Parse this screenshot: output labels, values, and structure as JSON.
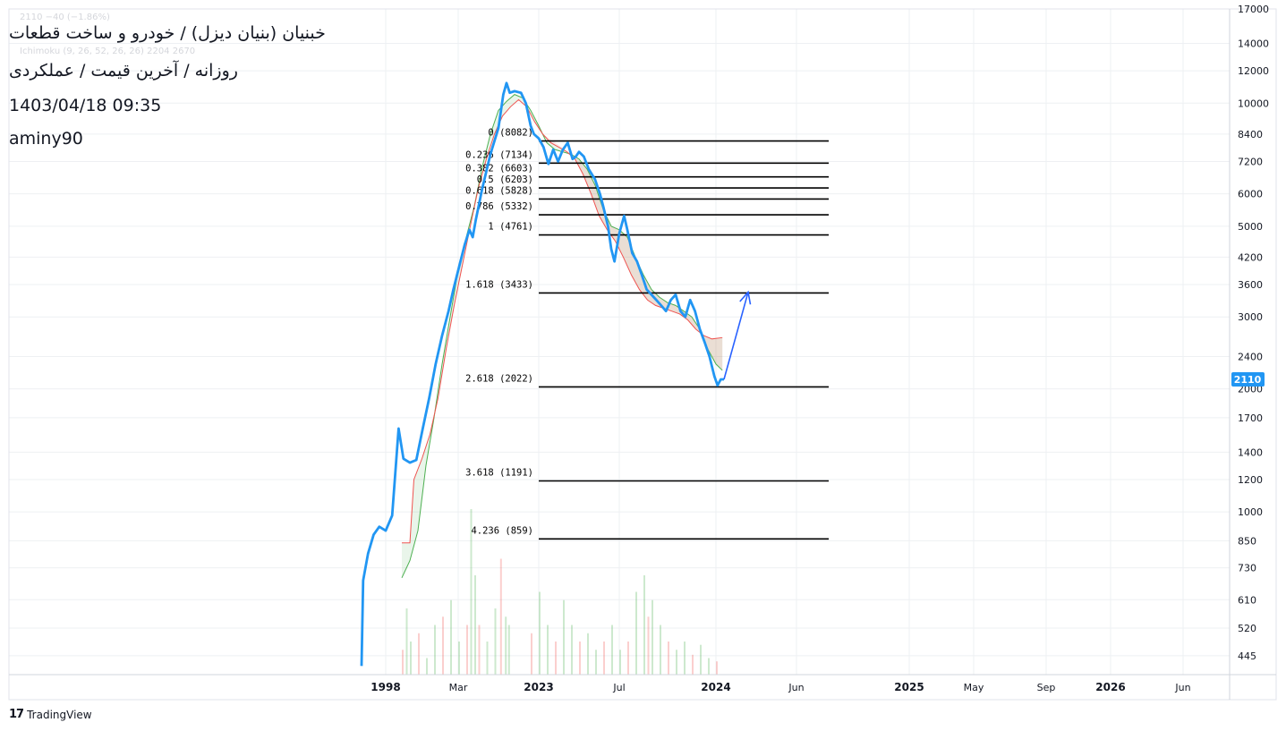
{
  "header": {
    "symbol_title": "خبنیان (بنیان دیزل) / خودرو و ساخت قطعات",
    "subtitle": "روزانه / آخرین قیمت / عملکردی",
    "datetime": "1403/04/18 09:35",
    "author": "aminy90",
    "faint_price_line": "2110 −40 (−1.86%)",
    "faint_indicator_line": "Ichimoku (9, 26, 52, 26, 26) 2204 2670"
  },
  "brand": {
    "logo_mark": "17",
    "logo_text": "TradingView"
  },
  "colors": {
    "price": "#2196f3",
    "cloud_green": "#4caf50",
    "cloud_red": "#ef5350",
    "fib": "#000000",
    "grid": "#eef0f3",
    "axis_text": "#131722",
    "last_price_bg": "#2196f3"
  },
  "chart_data": {
    "type": "line",
    "scale": "log",
    "ylim": [
      400,
      17000
    ],
    "y_ticks": [
      17000,
      14000,
      12000,
      10000,
      8400,
      7200,
      6000,
      5000,
      4200,
      3600,
      3000,
      2400,
      2000,
      1700,
      1400,
      1200,
      1000,
      850,
      730,
      610,
      520,
      445
    ],
    "x_ticks": [
      {
        "label": "1998",
        "pos": 0.3,
        "bold": true
      },
      {
        "label": "Mar",
        "pos": 1.2,
        "bold": false
      },
      {
        "label": "2023",
        "pos": 2.2,
        "bold": true
      },
      {
        "label": "Jul",
        "pos": 3.2,
        "bold": false
      },
      {
        "label": "2024",
        "pos": 4.4,
        "bold": true
      },
      {
        "label": "Jun",
        "pos": 5.4,
        "bold": false
      },
      {
        "label": "2025",
        "pos": 6.8,
        "bold": true
      },
      {
        "label": "May",
        "pos": 7.6,
        "bold": false
      },
      {
        "label": "Sep",
        "pos": 8.5,
        "bold": false
      },
      {
        "label": "2026",
        "pos": 9.3,
        "bold": true
      },
      {
        "label": "Jun",
        "pos": 10.2,
        "bold": false
      }
    ],
    "last_price": 2110,
    "series": [
      {
        "name": "",
        "values": [
          [
            0.0,
            420
          ],
          [
            0.02,
            680
          ],
          [
            0.08,
            790
          ],
          [
            0.15,
            880
          ],
          [
            0.22,
            920
          ],
          [
            0.3,
            900
          ],
          [
            0.38,
            980
          ],
          [
            0.46,
            1600
          ],
          [
            0.52,
            1350
          ],
          [
            0.6,
            1320
          ],
          [
            0.68,
            1340
          ],
          [
            0.76,
            1600
          ],
          [
            0.84,
            1900
          ],
          [
            0.92,
            2300
          ],
          [
            1.0,
            2700
          ],
          [
            1.08,
            3100
          ],
          [
            1.14,
            3500
          ],
          [
            1.2,
            3900
          ],
          [
            1.28,
            4500
          ],
          [
            1.34,
            4900
          ],
          [
            1.38,
            4700
          ],
          [
            1.42,
            5200
          ],
          [
            1.5,
            6200
          ],
          [
            1.6,
            7500
          ],
          [
            1.7,
            8700
          ],
          [
            1.76,
            10500
          ],
          [
            1.8,
            11200
          ],
          [
            1.84,
            10600
          ],
          [
            1.9,
            10700
          ],
          [
            1.98,
            10600
          ],
          [
            2.04,
            10000
          ],
          [
            2.1,
            8800
          ],
          [
            2.14,
            8400
          ],
          [
            2.2,
            8200
          ],
          [
            2.26,
            7800
          ],
          [
            2.32,
            7100
          ],
          [
            2.38,
            7700
          ],
          [
            2.44,
            7200
          ],
          [
            2.5,
            7700
          ],
          [
            2.56,
            8000
          ],
          [
            2.62,
            7300
          ],
          [
            2.66,
            7400
          ],
          [
            2.7,
            7600
          ],
          [
            2.76,
            7400
          ],
          [
            2.82,
            6900
          ],
          [
            2.9,
            6500
          ],
          [
            2.96,
            6000
          ],
          [
            3.0,
            5600
          ],
          [
            3.06,
            5000
          ],
          [
            3.1,
            4400
          ],
          [
            3.14,
            4100
          ],
          [
            3.2,
            4800
          ],
          [
            3.26,
            5300
          ],
          [
            3.3,
            4900
          ],
          [
            3.36,
            4300
          ],
          [
            3.42,
            4100
          ],
          [
            3.48,
            3800
          ],
          [
            3.54,
            3500
          ],
          [
            3.6,
            3400
          ],
          [
            3.66,
            3300
          ],
          [
            3.72,
            3200
          ],
          [
            3.78,
            3100
          ],
          [
            3.84,
            3300
          ],
          [
            3.9,
            3400
          ],
          [
            3.96,
            3100
          ],
          [
            4.02,
            3000
          ],
          [
            4.08,
            3300
          ],
          [
            4.14,
            3100
          ],
          [
            4.2,
            2800
          ],
          [
            4.26,
            2600
          ],
          [
            4.32,
            2400
          ],
          [
            4.38,
            2150
          ],
          [
            4.42,
            2040
          ],
          [
            4.46,
            2110
          ],
          [
            4.5,
            2110
          ]
        ]
      }
    ],
    "ichimoku_cloud": {
      "span_a": [
        [
          0.5,
          690
        ],
        [
          0.6,
          760
        ],
        [
          0.7,
          900
        ],
        [
          0.8,
          1300
        ],
        [
          0.9,
          1700
        ],
        [
          1.0,
          2300
        ],
        [
          1.1,
          3000
        ],
        [
          1.2,
          3900
        ],
        [
          1.3,
          4700
        ],
        [
          1.4,
          5600
        ],
        [
          1.5,
          7000
        ],
        [
          1.6,
          8400
        ],
        [
          1.7,
          9600
        ],
        [
          1.8,
          10100
        ],
        [
          1.9,
          10500
        ],
        [
          2.0,
          10300
        ],
        [
          2.1,
          9600
        ],
        [
          2.2,
          8800
        ],
        [
          2.3,
          8000
        ],
        [
          2.4,
          7700
        ],
        [
          2.5,
          7600
        ],
        [
          2.6,
          7500
        ],
        [
          2.7,
          7300
        ],
        [
          2.8,
          6900
        ],
        [
          2.9,
          6300
        ],
        [
          3.0,
          5500
        ],
        [
          3.1,
          5000
        ],
        [
          3.2,
          4900
        ],
        [
          3.3,
          4700
        ],
        [
          3.4,
          4200
        ],
        [
          3.5,
          3800
        ],
        [
          3.6,
          3500
        ],
        [
          3.7,
          3350
        ],
        [
          3.8,
          3250
        ],
        [
          3.9,
          3200
        ],
        [
          4.0,
          3100
        ],
        [
          4.1,
          3000
        ],
        [
          4.2,
          2800
        ],
        [
          4.3,
          2500
        ],
        [
          4.4,
          2300
        ],
        [
          4.48,
          2220
        ]
      ],
      "span_b": [
        [
          0.5,
          840
        ],
        [
          0.6,
          840
        ],
        [
          0.65,
          1200
        ],
        [
          0.75,
          1350
        ],
        [
          0.85,
          1550
        ],
        [
          0.95,
          1900
        ],
        [
          1.05,
          2500
        ],
        [
          1.15,
          3200
        ],
        [
          1.25,
          4000
        ],
        [
          1.35,
          5000
        ],
        [
          1.45,
          6200
        ],
        [
          1.55,
          7300
        ],
        [
          1.65,
          8400
        ],
        [
          1.75,
          9300
        ],
        [
          1.85,
          9800
        ],
        [
          1.95,
          10200
        ],
        [
          2.05,
          9800
        ],
        [
          2.15,
          9000
        ],
        [
          2.25,
          8400
        ],
        [
          2.35,
          8000
        ],
        [
          2.45,
          7800
        ],
        [
          2.55,
          7600
        ],
        [
          2.65,
          7300
        ],
        [
          2.75,
          6700
        ],
        [
          2.85,
          6000
        ],
        [
          2.95,
          5300
        ],
        [
          3.05,
          4900
        ],
        [
          3.15,
          4600
        ],
        [
          3.25,
          4200
        ],
        [
          3.35,
          3800
        ],
        [
          3.45,
          3500
        ],
        [
          3.55,
          3300
        ],
        [
          3.65,
          3200
        ],
        [
          3.75,
          3150
        ],
        [
          3.85,
          3100
        ],
        [
          3.95,
          3050
        ],
        [
          4.05,
          2950
        ],
        [
          4.15,
          2800
        ],
        [
          4.25,
          2700
        ],
        [
          4.35,
          2650
        ],
        [
          4.48,
          2670
        ]
      ]
    },
    "fib_levels": [
      {
        "label": "0 (8082)",
        "value": 8082
      },
      {
        "label": "0.236 (7134)",
        "value": 7134
      },
      {
        "label": "0.382 (6603)",
        "value": 6603
      },
      {
        "label": "0.5 (6203)",
        "value": 6203
      },
      {
        "label": "0.618 (5828)",
        "value": 5828
      },
      {
        "label": "0.786 (5332)",
        "value": 5332
      },
      {
        "label": "1 (4761)",
        "value": 4761
      },
      {
        "label": "1.618 (3433)",
        "value": 3433
      },
      {
        "label": "2.618 (2022)",
        "value": 2022
      },
      {
        "label": "3.618 (1191)",
        "value": 1191
      },
      {
        "label": "4.236 (859)",
        "value": 859
      }
    ],
    "fib_x_range": [
      2.2,
      5.8
    ],
    "projection_arrow": {
      "from": [
        4.5,
        2110
      ],
      "to": [
        4.8,
        3450
      ]
    },
    "volume": [
      [
        0.5,
        0.15
      ],
      [
        0.55,
        0.4
      ],
      [
        0.6,
        0.2
      ],
      [
        0.7,
        0.25
      ],
      [
        0.8,
        0.1
      ],
      [
        0.9,
        0.3
      ],
      [
        1.0,
        0.35
      ],
      [
        1.1,
        0.45
      ],
      [
        1.2,
        0.2
      ],
      [
        1.3,
        0.3
      ],
      [
        1.35,
        1.0
      ],
      [
        1.4,
        0.6
      ],
      [
        1.45,
        0.3
      ],
      [
        1.55,
        0.2
      ],
      [
        1.65,
        0.4
      ],
      [
        1.72,
        0.7
      ],
      [
        1.78,
        0.35
      ],
      [
        1.82,
        0.3
      ],
      [
        2.1,
        0.25
      ],
      [
        2.2,
        0.5
      ],
      [
        2.3,
        0.3
      ],
      [
        2.4,
        0.2
      ],
      [
        2.5,
        0.45
      ],
      [
        2.6,
        0.3
      ],
      [
        2.7,
        0.2
      ],
      [
        2.8,
        0.25
      ],
      [
        2.9,
        0.15
      ],
      [
        3.0,
        0.2
      ],
      [
        3.1,
        0.3
      ],
      [
        3.2,
        0.15
      ],
      [
        3.3,
        0.2
      ],
      [
        3.4,
        0.5
      ],
      [
        3.5,
        0.6
      ],
      [
        3.55,
        0.35
      ],
      [
        3.6,
        0.45
      ],
      [
        3.7,
        0.3
      ],
      [
        3.8,
        0.2
      ],
      [
        3.9,
        0.15
      ],
      [
        4.0,
        0.2
      ],
      [
        4.1,
        0.12
      ],
      [
        4.2,
        0.18
      ],
      [
        4.3,
        0.1
      ],
      [
        4.4,
        0.08
      ]
    ]
  }
}
